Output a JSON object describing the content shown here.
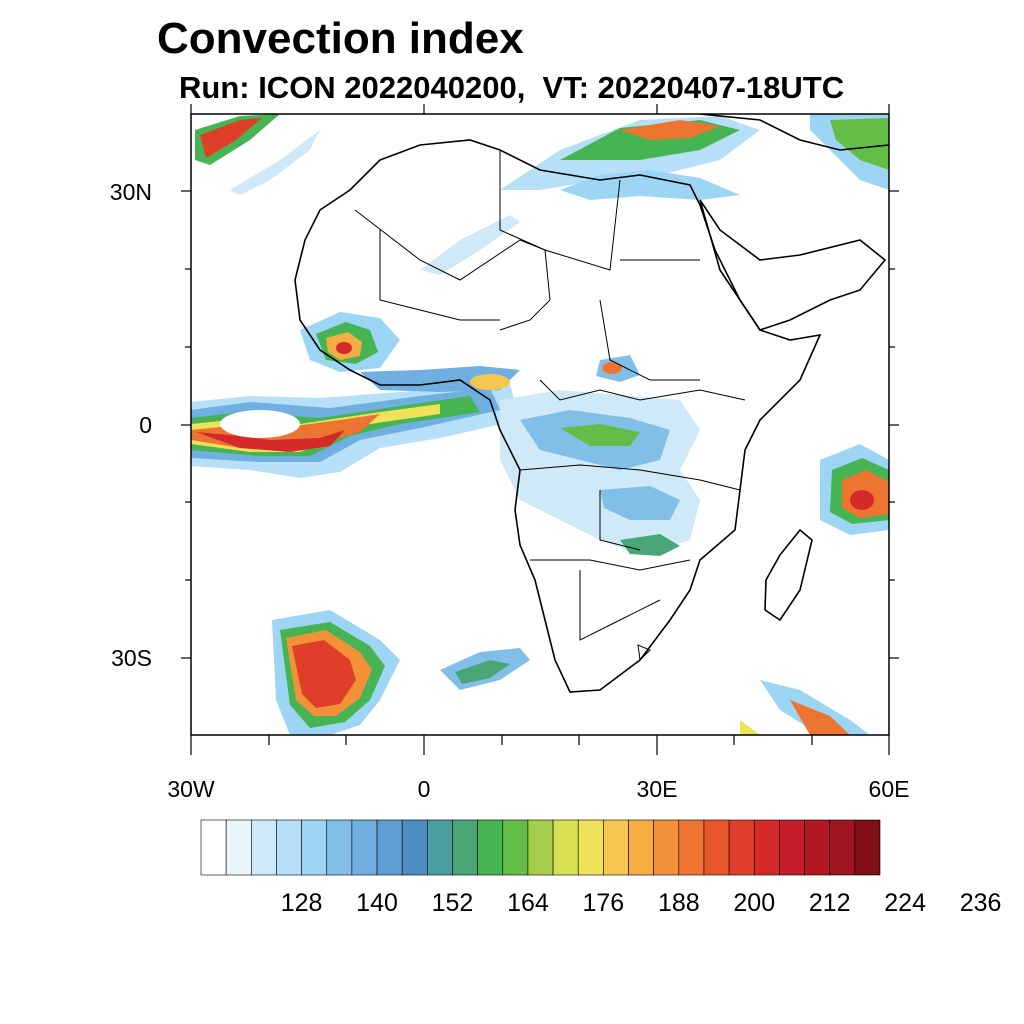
{
  "title": "Convection index",
  "subtitle": "Run: ICON 2022040200,  VT: 20220407-18UTC",
  "map": {
    "extent": {
      "lon_min": -30,
      "lon_max": 60,
      "lat_min": -40,
      "lat_max": 40
    },
    "lat_ticks": [
      "30N",
      "0",
      "30S"
    ],
    "lon_ticks": [
      "30W",
      "0",
      "30E",
      "60E"
    ]
  },
  "colorbar": {
    "levels_start": 116,
    "levels_step": 4,
    "colors": [
      "#ffffff",
      "#e8f5fc",
      "#cfe9f8",
      "#b6e0f7",
      "#9dd5f4",
      "#82bfe8",
      "#6fb0e0",
      "#5d9dd3",
      "#4b8cc1",
      "#4a9ea0",
      "#4aa676",
      "#46b452",
      "#63be47",
      "#a5cf4b",
      "#d8e153",
      "#efe259",
      "#f6c74e",
      "#f6ad44",
      "#f39139",
      "#ee7432",
      "#e6582c",
      "#df3f29",
      "#d42a2a",
      "#c41f28",
      "#b11824",
      "#9e1521",
      "#7f0f15"
    ],
    "tick_labels": [
      "128",
      "140",
      "152",
      "164",
      "176",
      "188",
      "200",
      "212",
      "224",
      "236"
    ]
  }
}
